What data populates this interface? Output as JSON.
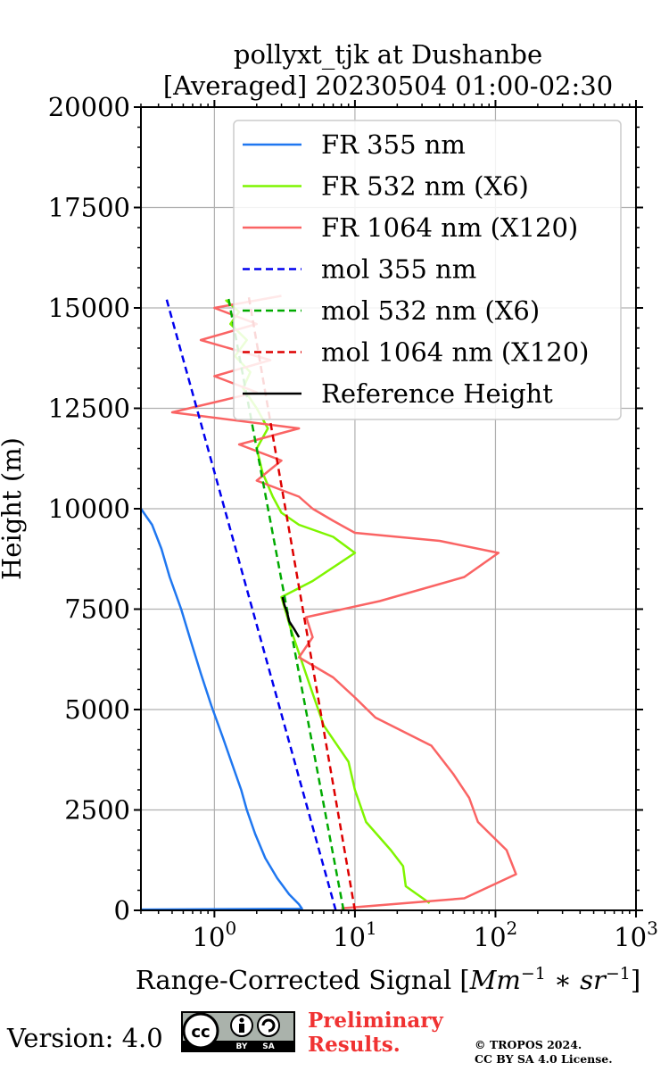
{
  "chart_data": {
    "type": "line",
    "title": "pollyxt_tjk at Dushanbe",
    "subtitle": "[Averaged] 20230504 01:00-02:30",
    "xlabel": "Range-Corrected Signal [Mm^{-1} * sr^{-1}]",
    "ylabel": "Height (m)",
    "xscale": "log",
    "xlim": [
      0.3,
      1000
    ],
    "ylim": [
      0,
      20000
    ],
    "x_ticks": [
      1,
      10,
      100,
      1000
    ],
    "x_tick_labels": [
      "10",
      "10",
      "10",
      "10"
    ],
    "x_tick_exponents": [
      "0",
      "1",
      "2",
      "3"
    ],
    "y_ticks": [
      0,
      2500,
      5000,
      7500,
      10000,
      12500,
      15000,
      17500,
      20000
    ],
    "y_tick_labels": [
      "0",
      "2500",
      "5000",
      "7500",
      "10000",
      "12500",
      "15000",
      "17500",
      "20000"
    ],
    "grid": true,
    "legend_position": "top-right",
    "series": [
      {
        "name": "FR 355 nm",
        "color": "#1f77f0",
        "style": "solid",
        "points": [
          [
            0.3,
            20
          ],
          [
            4.2,
            40
          ],
          [
            4.0,
            150
          ],
          [
            3.4,
            400
          ],
          [
            2.8,
            800
          ],
          [
            2.3,
            1300
          ],
          [
            1.95,
            1900
          ],
          [
            1.7,
            2500
          ],
          [
            1.55,
            3000
          ],
          [
            1.35,
            3600
          ],
          [
            1.15,
            4300
          ],
          [
            0.95,
            5100
          ],
          [
            0.8,
            5900
          ],
          [
            0.68,
            6700
          ],
          [
            0.58,
            7500
          ],
          [
            0.48,
            8300
          ],
          [
            0.42,
            9000
          ],
          [
            0.36,
            9600
          ],
          [
            0.3,
            10000
          ]
        ]
      },
      {
        "name": "FR 532 nm (X6)",
        "color": "#7ff500",
        "style": "solid",
        "points": [
          [
            34,
            180
          ],
          [
            23,
            600
          ],
          [
            22,
            1100
          ],
          [
            18,
            1500
          ],
          [
            12,
            2200
          ],
          [
            10,
            3000
          ],
          [
            9,
            3700
          ],
          [
            6,
            4600
          ],
          [
            5,
            5400
          ],
          [
            4,
            6400
          ],
          [
            3.5,
            7000
          ],
          [
            3,
            7800
          ],
          [
            5,
            8200
          ],
          [
            10,
            8900
          ],
          [
            7,
            9300
          ],
          [
            4,
            9600
          ],
          [
            3,
            9900
          ],
          [
            2.6,
            10300
          ],
          [
            2.2,
            10900
          ],
          [
            2,
            11500
          ],
          [
            2.4,
            12000
          ],
          [
            2.0,
            12500
          ],
          [
            1.6,
            13000
          ],
          [
            1.8,
            13400
          ],
          [
            1.4,
            13800
          ],
          [
            1.7,
            14200
          ],
          [
            1.3,
            14600
          ],
          [
            1.5,
            14900
          ],
          [
            1.2,
            15200
          ]
        ]
      },
      {
        "name": "FR 1064 nm (X120)",
        "color": "#fa6464",
        "style": "solid",
        "points": [
          [
            8,
            50
          ],
          [
            60,
            300
          ],
          [
            140,
            900
          ],
          [
            120,
            1500
          ],
          [
            75,
            2200
          ],
          [
            65,
            2800
          ],
          [
            50,
            3400
          ],
          [
            35,
            4100
          ],
          [
            14,
            4800
          ],
          [
            10,
            5300
          ],
          [
            7,
            5800
          ],
          [
            4,
            6300
          ],
          [
            5,
            6800
          ],
          [
            4.5,
            7300
          ],
          [
            15,
            7700
          ],
          [
            60,
            8300
          ],
          [
            105,
            8900
          ],
          [
            40,
            9200
          ],
          [
            10,
            9400
          ],
          [
            7,
            9700
          ],
          [
            5,
            10000
          ],
          [
            4,
            10300
          ],
          [
            2,
            10700
          ],
          [
            3,
            11200
          ],
          [
            1.5,
            11600
          ],
          [
            4,
            12000
          ],
          [
            0.5,
            12400
          ],
          [
            2,
            12900
          ],
          [
            1,
            13300
          ],
          [
            2.5,
            13700
          ],
          [
            0.8,
            14200
          ],
          [
            2,
            14600
          ],
          [
            1,
            15000
          ],
          [
            3,
            15300
          ]
        ]
      },
      {
        "name": "mol 355 nm",
        "color": "#0000ee",
        "style": "dashed",
        "points": [
          [
            7.3,
            0
          ],
          [
            0.45,
            15300
          ]
        ]
      },
      {
        "name": "mol 532 nm (X6)",
        "color": "#00aa00",
        "style": "dashed",
        "points": [
          [
            8.3,
            0
          ],
          [
            1.25,
            15300
          ]
        ]
      },
      {
        "name": "mol 1064 nm (X120)",
        "color": "#dd0000",
        "style": "dashed",
        "points": [
          [
            10,
            0
          ],
          [
            1.75,
            15300
          ]
        ]
      },
      {
        "name": "Reference Height",
        "color": "#000000",
        "style": "solid",
        "points": [
          [
            4,
            6800
          ],
          [
            3.7,
            7000
          ],
          [
            3.4,
            7200
          ],
          [
            3.3,
            7400
          ],
          [
            3.15,
            7600
          ],
          [
            3.05,
            7800
          ]
        ]
      }
    ]
  },
  "footer": {
    "version_label": "Version: 4.0",
    "preliminary_line1": "Preliminary",
    "preliminary_line2": "Results.",
    "copyright_line1": "© TROPOS 2024.",
    "copyright_line2": "CC BY SA 4.0 License.",
    "license_badge_text": [
      "cc",
      "BY",
      "SA"
    ]
  }
}
